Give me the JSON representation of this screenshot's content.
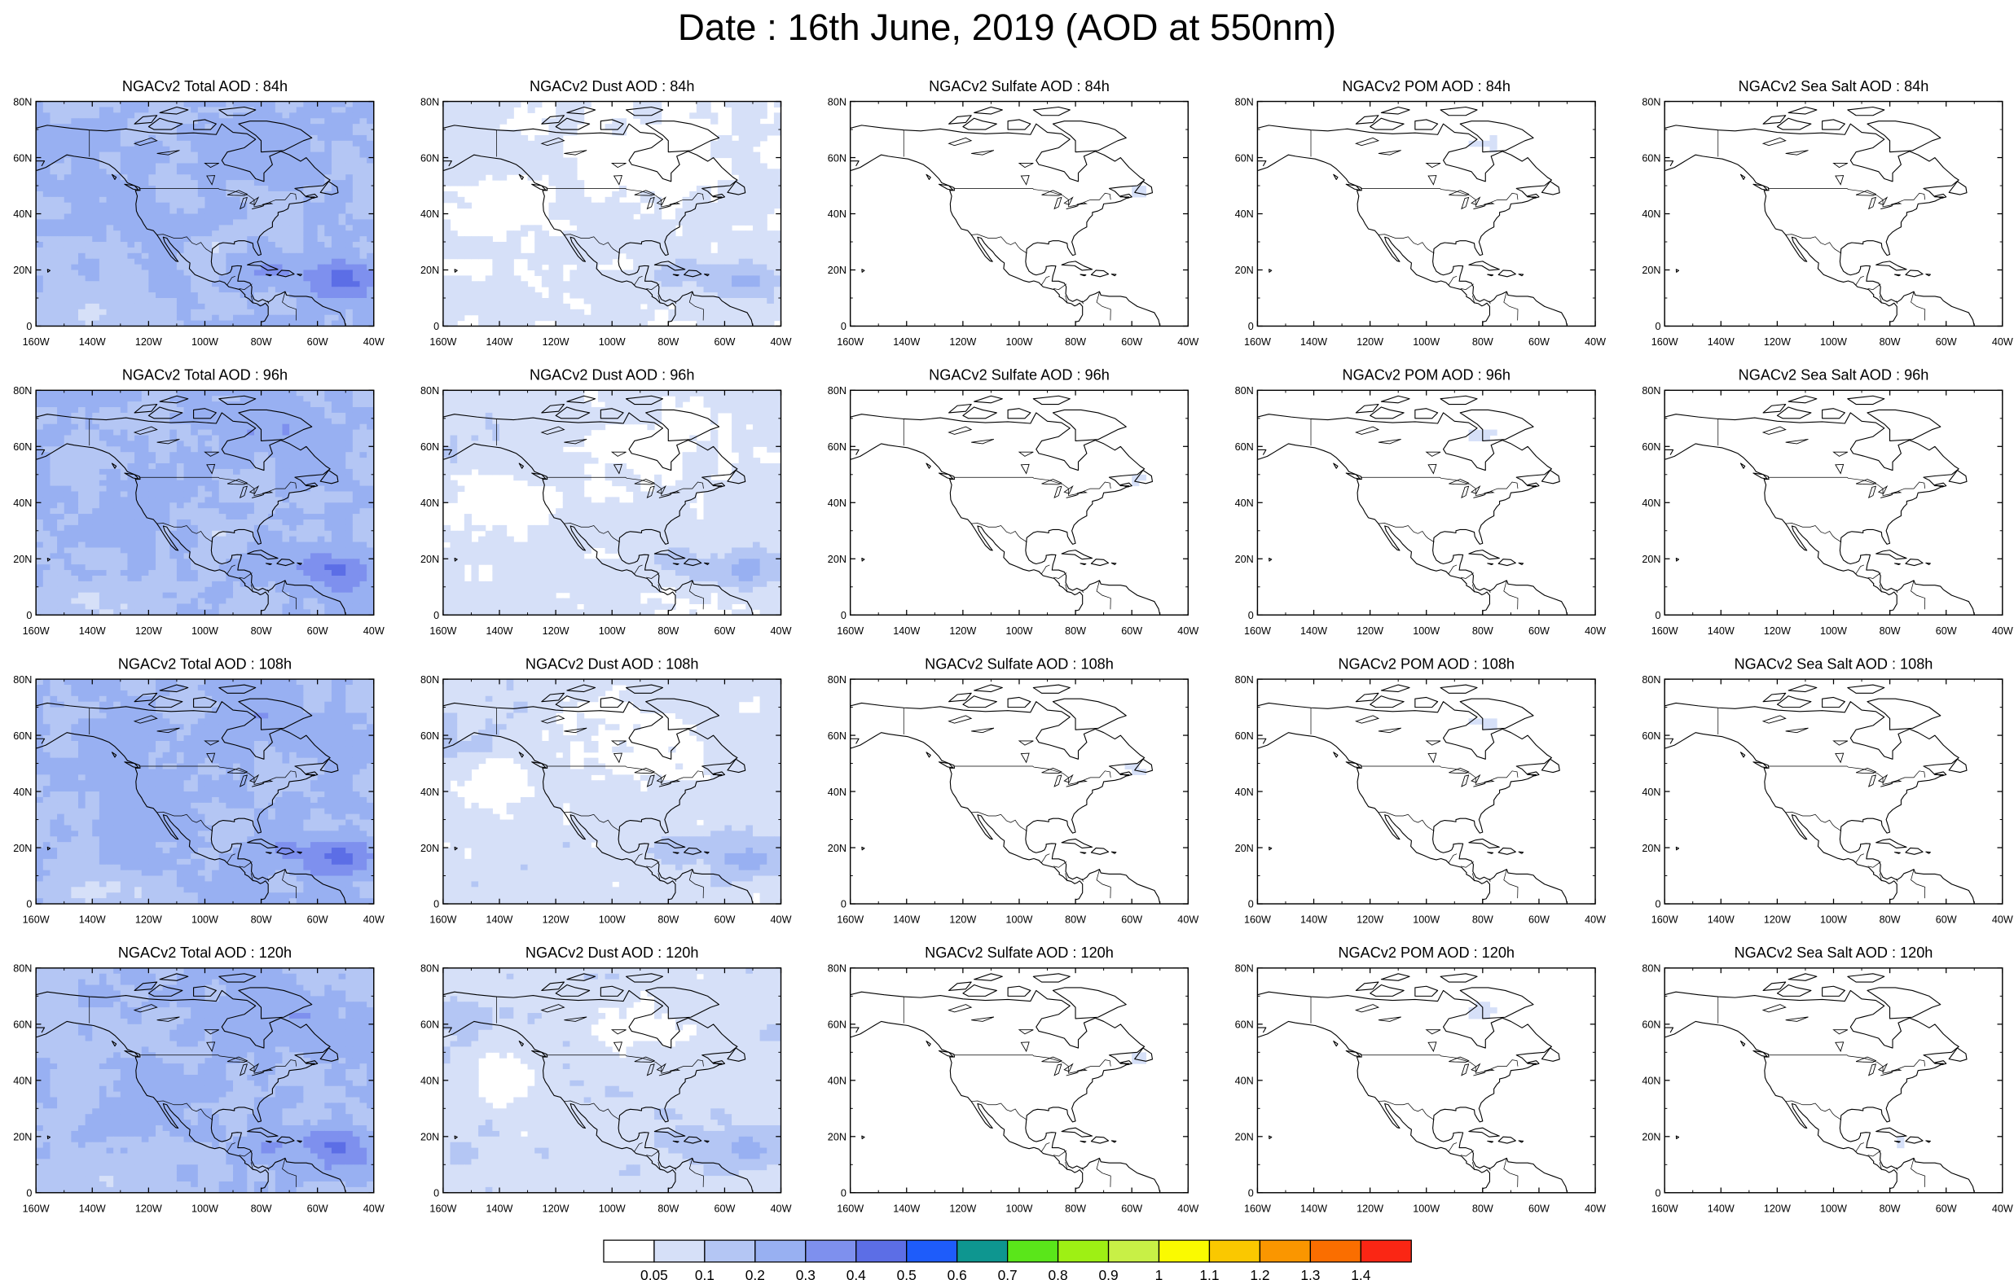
{
  "title": "Date : 16th June, 2019 (AOD at 550nm)",
  "lat_labels": [
    "80N",
    "60N",
    "40N",
    "20N",
    "0"
  ],
  "lon_labels": [
    "160W",
    "140W",
    "120W",
    "100W",
    "80W",
    "60W",
    "40W"
  ],
  "panels": [
    {
      "title": "NGACv2 Total AOD : 84h",
      "species": "total",
      "hour": 84
    },
    {
      "title": "NGACv2 Dust AOD : 84h",
      "species": "dust",
      "hour": 84
    },
    {
      "title": "NGACv2 Sulfate AOD : 84h",
      "species": "sulfate",
      "hour": 84
    },
    {
      "title": "NGACv2 POM AOD : 84h",
      "species": "pom",
      "hour": 84
    },
    {
      "title": "NGACv2 Sea Salt AOD : 84h",
      "species": "seasalt",
      "hour": 84
    },
    {
      "title": "NGACv2 Total AOD : 96h",
      "species": "total",
      "hour": 96
    },
    {
      "title": "NGACv2 Dust AOD : 96h",
      "species": "dust",
      "hour": 96
    },
    {
      "title": "NGACv2 Sulfate AOD : 96h",
      "species": "sulfate",
      "hour": 96
    },
    {
      "title": "NGACv2 POM AOD : 96h",
      "species": "pom",
      "hour": 96
    },
    {
      "title": "NGACv2 Sea Salt AOD : 96h",
      "species": "seasalt",
      "hour": 96
    },
    {
      "title": "NGACv2 Total AOD : 108h",
      "species": "total",
      "hour": 108
    },
    {
      "title": "NGACv2 Dust AOD : 108h",
      "species": "dust",
      "hour": 108
    },
    {
      "title": "NGACv2 Sulfate AOD : 108h",
      "species": "sulfate",
      "hour": 108
    },
    {
      "title": "NGACv2 POM AOD : 108h",
      "species": "pom",
      "hour": 108
    },
    {
      "title": "NGACv2 Sea Salt AOD : 108h",
      "species": "seasalt",
      "hour": 108
    },
    {
      "title": "NGACv2 Total AOD : 120h",
      "species": "total",
      "hour": 120
    },
    {
      "title": "NGACv2 Dust AOD : 120h",
      "species": "dust",
      "hour": 120
    },
    {
      "title": "NGACv2 Sulfate AOD : 120h",
      "species": "sulfate",
      "hour": 120
    },
    {
      "title": "NGACv2 POM AOD : 120h",
      "species": "pom",
      "hour": 120
    },
    {
      "title": "NGACv2 Sea Salt  AOD : 120h",
      "species": "seasalt",
      "hour": 120
    }
  ],
  "colorbar": {
    "labels": [
      "0.05",
      "0.1",
      "0.2",
      "0.3",
      "0.4",
      "0.5",
      "0.6",
      "0.7",
      "0.8",
      "0.9",
      "1",
      "1.1",
      "1.2",
      "1.3",
      "1.4"
    ],
    "colors": [
      "#ffffff",
      "#d6e0f8",
      "#b4c6f4",
      "#98b0f2",
      "#7e90ee",
      "#5c6ee6",
      "#1e5cfa",
      "#0e9690",
      "#5ae61a",
      "#9ef014",
      "#c8f046",
      "#fafa00",
      "#fac800",
      "#fa9600",
      "#fa6e00",
      "#fa2614"
    ]
  },
  "map_colors": {
    "coast": "#000000",
    "axes": "#000000"
  }
}
